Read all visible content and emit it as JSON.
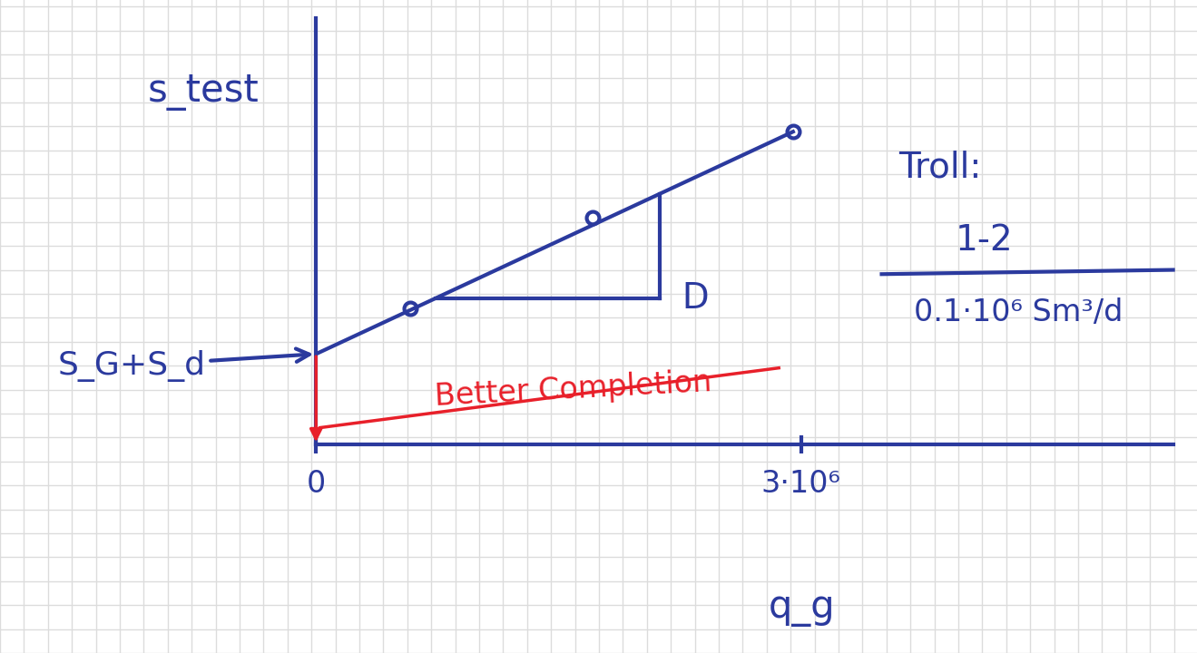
{
  "chart_data": {
    "type": "scatter",
    "y_label": "s_test",
    "x_label": "q_g",
    "xlim": [
      0,
      5300000
    ],
    "ylim": [
      0,
      4.7
    ],
    "xticks": [
      0,
      {
        "value": 3000000,
        "label": "3·10⁶"
      }
    ],
    "yticks": [],
    "tick_labels": "x",
    "color": "#2b3a9e",
    "series": [
      {
        "type": "scatter",
        "marker": "o",
        "color": "#2b3a9e",
        "x": [
          580000,
          1710000,
          2950000
        ],
        "values": [
          1.5,
          2.5,
          3.45
        ]
      },
      {
        "type": "line",
        "line_style": "solid",
        "color": "#2b3a9e",
        "x": [
          0,
          2950000
        ],
        "values": [
          1.0,
          3.45
        ]
      }
    ],
    "intercept": {
      "label": "S_G+S_d",
      "x": 0,
      "y": 1.0,
      "color": "#2b3a9e"
    },
    "improvement": {
      "label": "Better Completion",
      "x": 0,
      "y_from": 1.0,
      "y_to": 0,
      "color": "#e8202a"
    },
    "slope_label": {
      "text": "D",
      "color": "#2b3a9e"
    },
    "note": {
      "title": "Troll:",
      "numerator": "1-2",
      "denominator": "0.1·10⁶ Sm³/d",
      "color": "#2b3a9e"
    }
  }
}
